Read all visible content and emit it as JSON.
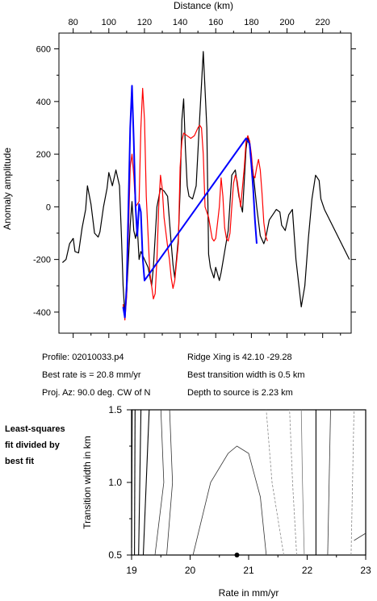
{
  "chart_data": [
    {
      "type": "line",
      "xlabel_top": "Distance (km)",
      "ylabel": "Anomaly amplitude",
      "x_ticks": [
        80,
        100,
        120,
        140,
        160,
        180,
        200,
        220
      ],
      "y_ticks": [
        -400,
        -200,
        0,
        200,
        400,
        600
      ],
      "xlim": [
        72,
        236
      ],
      "ylim": [
        -480,
        660
      ],
      "series": [
        {
          "color": "#000000",
          "points": [
            [
              74,
              -212
            ],
            [
              76,
              -200
            ],
            [
              78,
              -140
            ],
            [
              80,
              -120
            ],
            [
              81,
              -170
            ],
            [
              83,
              -175
            ],
            [
              85,
              -80
            ],
            [
              87,
              -10
            ],
            [
              88,
              80
            ],
            [
              90,
              10
            ],
            [
              92,
              -100
            ],
            [
              94,
              -115
            ],
            [
              95,
              -95
            ],
            [
              97,
              0
            ],
            [
              99,
              70
            ],
            [
              100,
              130
            ],
            [
              102,
              80
            ],
            [
              104,
              140
            ],
            [
              106,
              80
            ],
            [
              107,
              -100
            ],
            [
              108,
              -300
            ],
            [
              109,
              -410
            ],
            [
              110,
              -330
            ],
            [
              112,
              -70
            ],
            [
              113,
              20
            ],
            [
              114,
              -90
            ],
            [
              115,
              -120
            ],
            [
              116,
              -80
            ],
            [
              117,
              -200
            ],
            [
              118,
              -170
            ],
            [
              120,
              -200
            ],
            [
              122,
              -230
            ],
            [
              124,
              -300
            ],
            [
              125,
              -230
            ],
            [
              127,
              0
            ],
            [
              129,
              70
            ],
            [
              131,
              60
            ],
            [
              133,
              40
            ],
            [
              135,
              -140
            ],
            [
              136,
              -220
            ],
            [
              137,
              -270
            ],
            [
              139,
              -120
            ],
            [
              140,
              60
            ],
            [
              141,
              330
            ],
            [
              142,
              410
            ],
            [
              143,
              220
            ],
            [
              144,
              80
            ],
            [
              145,
              40
            ],
            [
              147,
              30
            ],
            [
              149,
              80
            ],
            [
              151,
              340
            ],
            [
              153,
              590
            ],
            [
              155,
              300
            ],
            [
              156,
              -180
            ],
            [
              157,
              -230
            ],
            [
              159,
              -270
            ],
            [
              160,
              -230
            ],
            [
              162,
              -280
            ],
            [
              163,
              -250
            ],
            [
              165,
              -170
            ],
            [
              167,
              -90
            ],
            [
              169,
              120
            ],
            [
              171,
              140
            ],
            [
              173,
              40
            ],
            [
              174,
              10
            ],
            [
              175,
              -20
            ],
            [
              177,
              220
            ],
            [
              178,
              270
            ],
            [
              179,
              230
            ],
            [
              181,
              130
            ],
            [
              183,
              0
            ],
            [
              185,
              -110
            ],
            [
              187,
              -140
            ],
            [
              188,
              -120
            ],
            [
              190,
              -50
            ],
            [
              192,
              -30
            ],
            [
              194,
              -10
            ],
            [
              196,
              -20
            ],
            [
              197,
              -70
            ],
            [
              199,
              -90
            ],
            [
              201,
              -30
            ],
            [
              203,
              -10
            ],
            [
              205,
              -200
            ],
            [
              207,
              -320
            ],
            [
              208,
              -380
            ],
            [
              210,
              -300
            ],
            [
              212,
              -120
            ],
            [
              214,
              30
            ],
            [
              216,
              120
            ],
            [
              218,
              100
            ],
            [
              219,
              30
            ],
            [
              221,
              -10
            ],
            [
              235,
              -200
            ]
          ]
        },
        {
          "color": "#ff0000",
          "points": [
            [
              108,
              -370
            ],
            [
              109,
              -430
            ],
            [
              110,
              -340
            ],
            [
              111,
              -100
            ],
            [
              112,
              150
            ],
            [
              113,
              200
            ],
            [
              114,
              120
            ],
            [
              115,
              0
            ],
            [
              117,
              20
            ],
            [
              118,
              300
            ],
            [
              119,
              450
            ],
            [
              120,
              330
            ],
            [
              121,
              40
            ],
            [
              123,
              -250
            ],
            [
              125,
              -350
            ],
            [
              126,
              -330
            ],
            [
              127,
              -200
            ],
            [
              128,
              0
            ],
            [
              129,
              120
            ],
            [
              130,
              70
            ],
            [
              131,
              -40
            ],
            [
              133,
              -150
            ],
            [
              134,
              -200
            ],
            [
              135,
              -270
            ],
            [
              136,
              -310
            ],
            [
              137,
              -280
            ],
            [
              139,
              -140
            ],
            [
              140,
              150
            ],
            [
              141,
              250
            ],
            [
              142,
              280
            ],
            [
              144,
              270
            ],
            [
              146,
              260
            ],
            [
              148,
              270
            ],
            [
              150,
              300
            ],
            [
              151,
              310
            ],
            [
              152,
              300
            ],
            [
              153,
              200
            ],
            [
              154,
              0
            ],
            [
              155,
              -20
            ],
            [
              156,
              -40
            ],
            [
              157,
              -80
            ],
            [
              158,
              -120
            ],
            [
              159,
              -130
            ],
            [
              160,
              -120
            ],
            [
              161,
              -60
            ],
            [
              162,
              0
            ],
            [
              163,
              110
            ],
            [
              164,
              40
            ],
            [
              165,
              -80
            ],
            [
              166,
              -120
            ],
            [
              167,
              -130
            ],
            [
              168,
              -100
            ],
            [
              169,
              0
            ],
            [
              170,
              90
            ],
            [
              171,
              120
            ],
            [
              172,
              100
            ],
            [
              173,
              50
            ],
            [
              174,
              0
            ],
            [
              176,
              150
            ],
            [
              177,
              250
            ],
            [
              178,
              270
            ],
            [
              179,
              250
            ],
            [
              180,
              200
            ],
            [
              181,
              120
            ],
            [
              182,
              110
            ],
            [
              183,
              150
            ],
            [
              184,
              180
            ],
            [
              185,
              140
            ],
            [
              186,
              50
            ],
            [
              187,
              -60
            ],
            [
              188,
              -110
            ],
            [
              189,
              -130
            ]
          ]
        },
        {
          "color": "#0000ff",
          "points": [
            [
              108,
              -380
            ],
            [
              109,
              -420
            ],
            [
              110,
              -300
            ],
            [
              111,
              0
            ],
            [
              112,
              300
            ],
            [
              113,
              460
            ],
            [
              114,
              250
            ],
            [
              115,
              0
            ],
            [
              116,
              -110
            ],
            [
              117,
              10
            ],
            [
              118,
              -20
            ],
            [
              119,
              -190
            ],
            [
              120,
              -280
            ],
            [
              177,
              260
            ],
            [
              179,
              240
            ],
            [
              180,
              160
            ],
            [
              181,
              70
            ],
            [
              182,
              -50
            ],
            [
              183,
              -140
            ]
          ]
        }
      ]
    },
    {
      "type": "contour",
      "xlabel": "Rate in mm/yr",
      "ylabel": "Transition width in km",
      "x_ticks": [
        19,
        20,
        21,
        22,
        23
      ],
      "y_ticks": [
        0.5,
        1.0,
        1.5
      ],
      "xlim": [
        19,
        23
      ],
      "ylim": [
        0.5,
        1.5
      ],
      "best_fit_point": [
        20.8,
        0.5
      ],
      "contours": [
        {
          "style": "solid-black",
          "points": [
            [
              19.0,
              0.55
            ],
            [
              19.01,
              1.5
            ]
          ]
        },
        {
          "style": "solid-black",
          "points": [
            [
              19.05,
              0.5
            ],
            [
              19.06,
              1.5
            ]
          ]
        },
        {
          "style": "solid-black",
          "points": [
            [
              19.12,
              0.5
            ],
            [
              19.16,
              1.5
            ]
          ]
        },
        {
          "style": "solid-black",
          "points": [
            [
              19.2,
              0.5
            ],
            [
              19.3,
              1.5
            ]
          ]
        },
        {
          "style": "solid-thin",
          "points": [
            [
              19.4,
              0.5
            ],
            [
              19.55,
              1.0
            ],
            [
              19.5,
              1.5
            ]
          ]
        },
        {
          "style": "solid-thin",
          "points": [
            [
              19.6,
              0.5
            ],
            [
              19.7,
              1.0
            ],
            [
              19.65,
              1.5
            ]
          ]
        },
        {
          "style": "solid-thin",
          "points": [
            [
              20.05,
              0.5
            ],
            [
              20.35,
              1.0
            ],
            [
              20.65,
              1.2
            ],
            [
              20.8,
              1.25
            ],
            [
              21.0,
              1.2
            ],
            [
              21.2,
              0.9
            ],
            [
              21.3,
              0.5
            ]
          ]
        },
        {
          "style": "dashed-gray",
          "points": [
            [
              21.6,
              0.5
            ],
            [
              21.4,
              1.0
            ],
            [
              21.3,
              1.5
            ]
          ]
        },
        {
          "style": "dashed-gray",
          "points": [
            [
              21.82,
              0.5
            ],
            [
              21.75,
              1.0
            ],
            [
              21.7,
              1.5
            ]
          ]
        },
        {
          "style": "solid-gray",
          "points": [
            [
              21.95,
              0.5
            ],
            [
              21.92,
              1.0
            ],
            [
              21.9,
              1.5
            ]
          ]
        },
        {
          "style": "solid-black",
          "points": [
            [
              22.15,
              0.5
            ],
            [
              22.15,
              1.5
            ]
          ]
        },
        {
          "style": "solid-thin",
          "points": [
            [
              22.35,
              0.5
            ],
            [
              22.4,
              1.5
            ]
          ]
        },
        {
          "style": "dashed-gray",
          "points": [
            [
              22.75,
              0.5
            ],
            [
              22.8,
              1.5
            ]
          ]
        },
        {
          "style": "solid-thin",
          "points": [
            [
              22.8,
              0.6
            ],
            [
              23.0,
              0.65
            ]
          ]
        }
      ]
    }
  ],
  "info": {
    "profile": "Profile: 02010033.p4",
    "best_rate": "Best rate is = 20.8 mm/yr",
    "proj_az": "Proj. Az: 90.0 deg. CW of N",
    "ridge_xing": "Ridge Xing is 42.10 -29.28",
    "best_width": "Best transition width is 0.5 km",
    "depth": "Depth to source is   2.23 km"
  },
  "side_label": [
    "Least-squares",
    "fit divided by",
    "best fit"
  ]
}
